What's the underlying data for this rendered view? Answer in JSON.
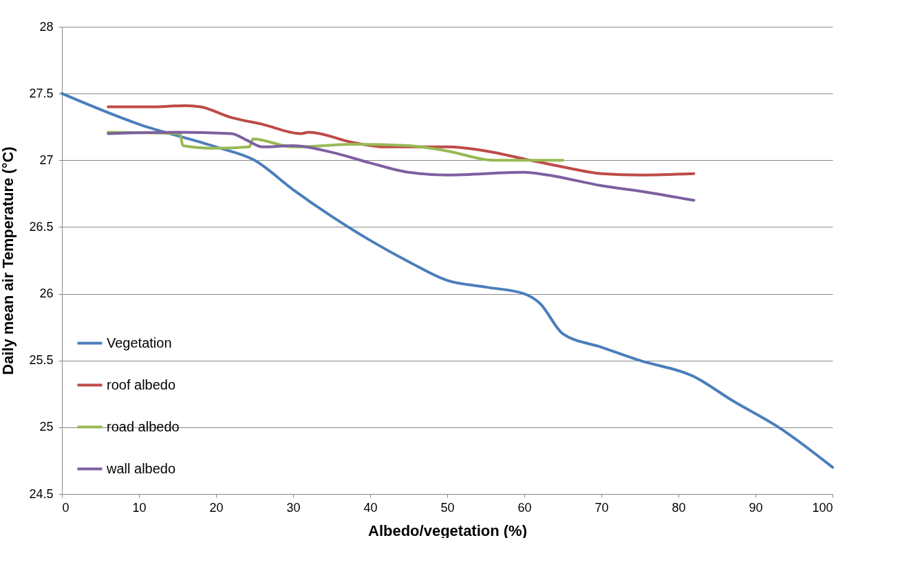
{
  "chart_data": {
    "type": "line",
    "xlabel": "Albedo/vegetation (%)",
    "ylabel": "Daily mean air Temperature (°C)",
    "xlim": [
      0,
      100
    ],
    "xticks": [
      0,
      10,
      20,
      30,
      40,
      50,
      60,
      70,
      80,
      90,
      100
    ],
    "ylim": [
      24.5,
      28
    ],
    "yticks": [
      24.5,
      25,
      25.5,
      26,
      26.5,
      27,
      27.5,
      28
    ],
    "grid": "y",
    "legend": "bottom left",
    "marker": "none",
    "line_style": "solid",
    "series": [
      {
        "name": "Vegetation",
        "color": "#4a7ebb",
        "x": [
          0,
          10,
          20,
          25,
          30,
          35,
          40,
          45,
          50,
          55,
          60,
          62,
          65,
          70,
          75,
          82,
          87,
          93,
          100
        ],
        "values": [
          27.5,
          27.27,
          27.1,
          27.0,
          26.78,
          26.58,
          26.4,
          26.24,
          26.1,
          26.05,
          26.0,
          25.93,
          25.7,
          25.6,
          25.5,
          25.38,
          25.2,
          25.0,
          24.7
        ]
      },
      {
        "name": "roof albedo",
        "color": "#be4b48",
        "x": [
          6,
          12,
          16,
          18,
          22,
          26,
          31,
          32,
          38,
          42,
          50,
          55,
          60,
          65,
          70,
          75,
          82
        ],
        "values": [
          27.4,
          27.4,
          27.41,
          27.4,
          27.32,
          27.27,
          27.2,
          27.21,
          27.13,
          27.1,
          27.1,
          27.07,
          27.01,
          26.95,
          26.9,
          26.89,
          26.9
        ]
      },
      {
        "name": "road albedo",
        "color": "#98b954",
        "x": [
          6,
          15.3,
          15.7,
          20,
          24.3,
          24.8,
          30,
          38,
          45,
          50,
          56,
          60,
          65
        ],
        "values": [
          27.21,
          27.2,
          27.11,
          27.09,
          27.1,
          27.16,
          27.1,
          27.12,
          27.11,
          27.07,
          27.0,
          27.0,
          27.0
        ]
      },
      {
        "name": "wall albedo",
        "color": "#7d60a0",
        "x": [
          6,
          15,
          22,
          24,
          26,
          30,
          35,
          40,
          45,
          50,
          60,
          63,
          70,
          76,
          82
        ],
        "values": [
          27.2,
          27.21,
          27.2,
          27.15,
          27.1,
          27.11,
          27.06,
          26.98,
          26.91,
          26.89,
          26.91,
          26.89,
          26.81,
          26.76,
          26.7
        ]
      }
    ]
  }
}
